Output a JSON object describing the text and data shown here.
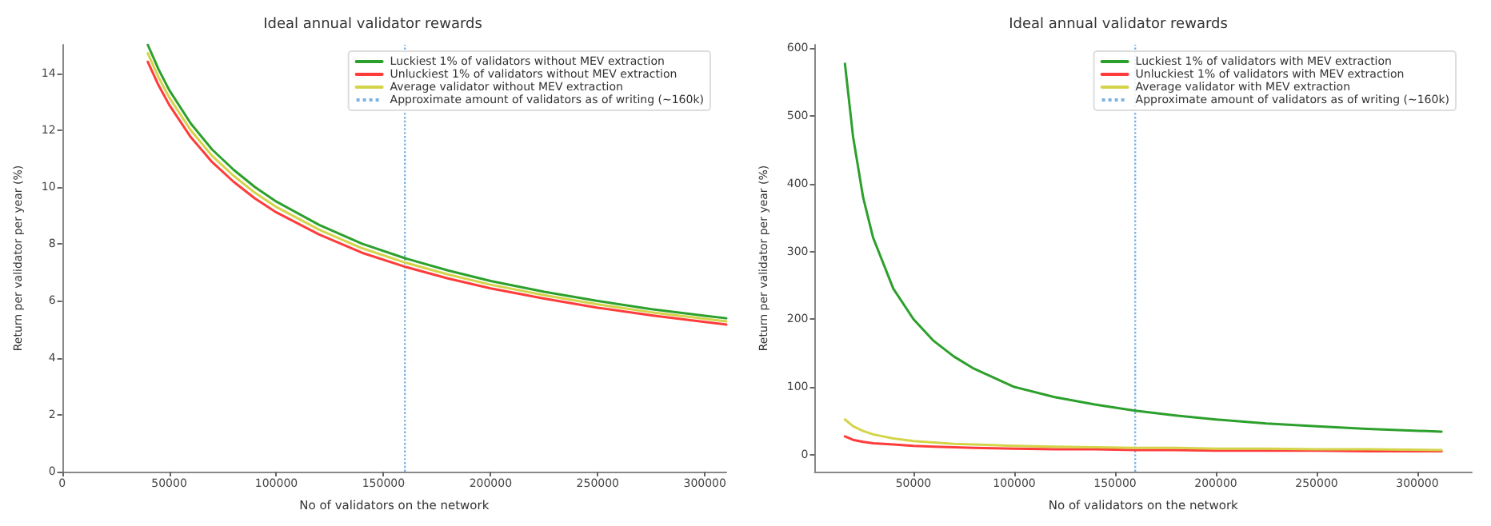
{
  "chart_data": [
    {
      "type": "line",
      "title": "Ideal annual validator rewards",
      "xlabel": "No of validators on the network",
      "ylabel": "Return per validator per year (%)",
      "x": [
        40000,
        45000,
        50000,
        60000,
        70000,
        80000,
        90000,
        100000,
        120000,
        140000,
        160000,
        180000,
        200000,
        225000,
        250000,
        275000,
        300000,
        310000
      ],
      "series": [
        {
          "name": "Luckiest 1% of validators without MEV extraction",
          "color": "#2ca02c",
          "values": [
            15.0,
            14.14,
            13.41,
            12.24,
            11.32,
            10.61,
            10.0,
            9.49,
            8.67,
            8.01,
            7.5,
            7.07,
            6.7,
            6.32,
            6.0,
            5.71,
            5.48,
            5.39
          ]
        },
        {
          "name": "Unluckiest 1% of validators without MEV extraction",
          "color": "#ff3b3b",
          "values": [
            14.4,
            13.58,
            12.89,
            11.76,
            10.88,
            10.19,
            9.6,
            9.11,
            8.33,
            7.69,
            7.2,
            6.79,
            6.44,
            6.08,
            5.76,
            5.49,
            5.26,
            5.17
          ]
        },
        {
          "name": "Average validator without MEV extraction",
          "color": "#d4d44a",
          "values": [
            14.7,
            13.86,
            13.15,
            12.0,
            11.1,
            10.4,
            9.8,
            9.3,
            8.5,
            7.85,
            7.35,
            6.93,
            6.57,
            6.2,
            5.88,
            5.6,
            5.37,
            5.28
          ]
        }
      ],
      "xlim": [
        0,
        310000
      ],
      "xticks": [
        0,
        50000,
        100000,
        150000,
        200000,
        250000,
        300000
      ],
      "ylim": [
        0,
        15
      ],
      "yticks": [
        0,
        2,
        4,
        6,
        8,
        10,
        12,
        14
      ],
      "ref_lines": [
        {
          "axis": "x",
          "value": 160000,
          "label": "Approximate amount of validators as of writing (~160k)",
          "color": "#7fb2e0",
          "line_style": "dotted"
        }
      ],
      "legend": "top right",
      "grid": false,
      "marker": "none",
      "line_style": "solid"
    },
    {
      "type": "line",
      "title": "Ideal annual validator rewards",
      "xlabel": "No of validators on the network",
      "ylabel": "Return per validator per year (%)",
      "x": [
        16000,
        20000,
        25000,
        30000,
        40000,
        50000,
        60000,
        70000,
        80000,
        100000,
        120000,
        140000,
        160000,
        180000,
        200000,
        225000,
        250000,
        275000,
        312000
      ],
      "series": [
        {
          "name": "Luckiest 1% of validators with MEV extraction",
          "color": "#2ca02c",
          "values": [
            577,
            470,
            380,
            320,
            245,
            200,
            168,
            145,
            127,
            100,
            85,
            74,
            65,
            58,
            52,
            46,
            42,
            38,
            34
          ]
        },
        {
          "name": "Unluckiest 1% of validators with MEV extraction",
          "color": "#ff3b3b",
          "values": [
            27,
            22,
            19,
            17,
            15,
            13,
            12,
            11,
            10,
            9,
            8,
            8,
            7,
            7,
            6,
            6,
            6,
            5,
            5
          ]
        },
        {
          "name": "Average validator with MEV extraction",
          "color": "#d4d44a",
          "values": [
            52,
            42,
            35,
            30,
            24,
            20,
            18,
            16,
            15,
            13,
            12,
            11,
            10,
            10,
            9,
            9,
            8,
            8,
            7
          ]
        }
      ],
      "xlim": [
        1000,
        327000
      ],
      "xticks": [
        50000,
        100000,
        150000,
        200000,
        250000,
        300000
      ],
      "ylim": [
        -25,
        605
      ],
      "yticks": [
        0,
        100,
        200,
        300,
        400,
        500,
        600
      ],
      "ref_lines": [
        {
          "axis": "x",
          "value": 160000,
          "label": "Approximate amount of validators as of writing (~160k)",
          "color": "#7fb2e0",
          "line_style": "dotted"
        }
      ],
      "legend": "top right",
      "grid": false,
      "marker": "none",
      "line_style": "solid"
    }
  ]
}
